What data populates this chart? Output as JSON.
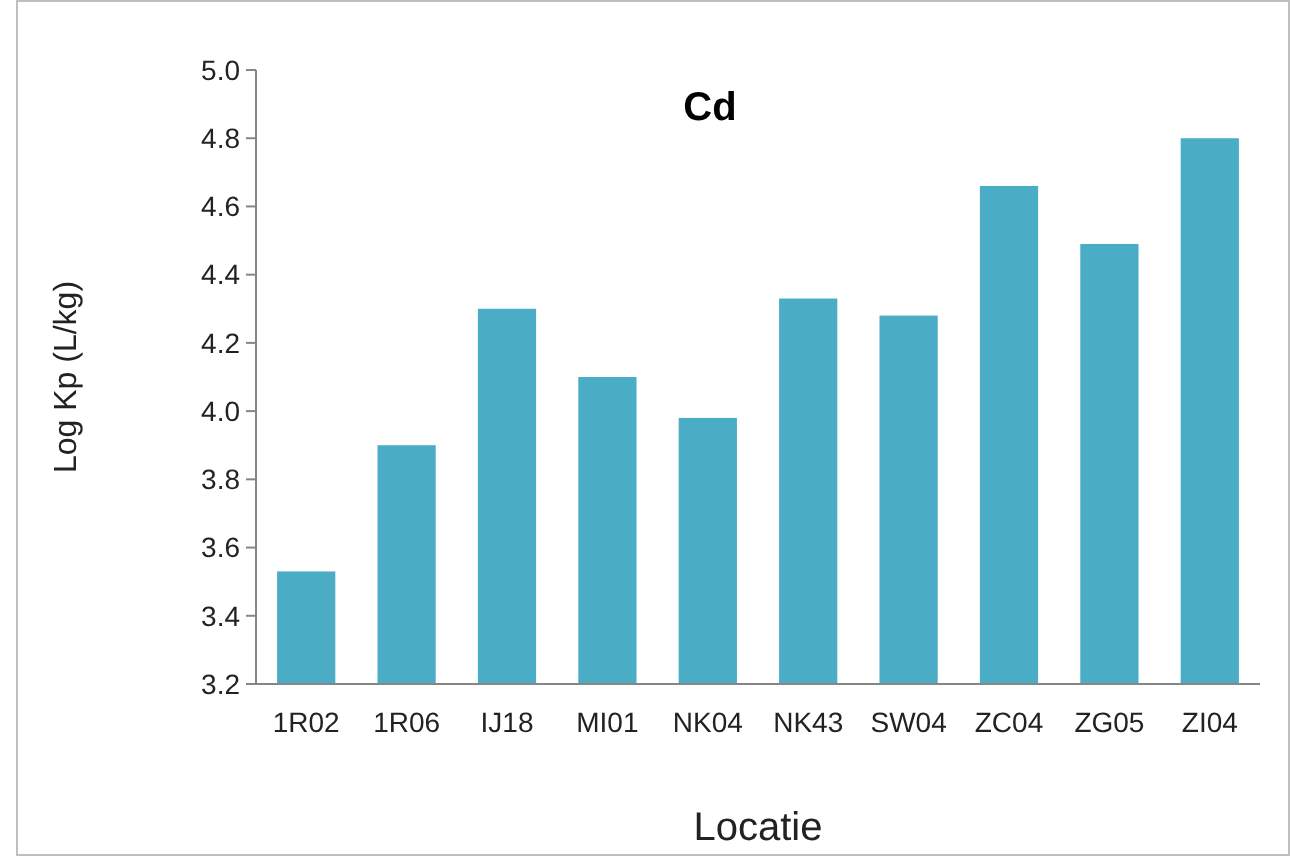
{
  "chart_data": {
    "type": "bar",
    "title": "Cd",
    "xlabel": "Locatie",
    "ylabel": "Log Kp (L/kg)",
    "categories": [
      "1R02",
      "1R06",
      "IJ18",
      "MI01",
      "NK04",
      "NK43",
      "SW04",
      "ZC04",
      "ZG05",
      "ZI04"
    ],
    "values": [
      3.53,
      3.9,
      4.3,
      4.1,
      3.98,
      4.33,
      4.28,
      4.66,
      4.49,
      4.8
    ],
    "color": "#4bacc6",
    "ylim": [
      3.2,
      5.0
    ],
    "yticks": [
      {
        "value": 3.2,
        "label": "3.2"
      },
      {
        "value": 3.4,
        "label": "3.4"
      },
      {
        "value": 3.6,
        "label": "3.6"
      },
      {
        "value": 3.8,
        "label": "3.8"
      },
      {
        "value": 4.0,
        "label": "4.0"
      },
      {
        "value": 4.2,
        "label": "4.2"
      },
      {
        "value": 4.4,
        "label": "4.4"
      },
      {
        "value": 4.6,
        "label": "4.6"
      },
      {
        "value": 4.8,
        "label": "4.8"
      },
      {
        "value": 5.0,
        "label": "5.0"
      }
    ],
    "grid": false
  }
}
